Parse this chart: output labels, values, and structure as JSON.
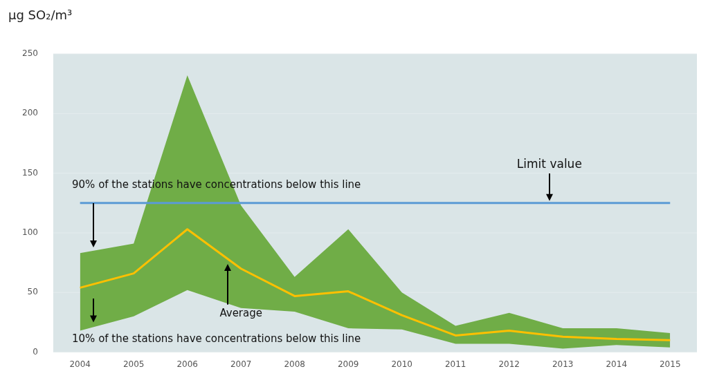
{
  "chart_data": {
    "type": "line",
    "ylabel": "µg SO₂/m³",
    "categories": [
      "2004",
      "2005",
      "2006",
      "2007",
      "2008",
      "2009",
      "2010",
      "2011",
      "2012",
      "2013",
      "2014",
      "2015"
    ],
    "series": [
      {
        "color": "#ffc000",
        "values": [
          54,
          66,
          103,
          70,
          47,
          51,
          31,
          14,
          18,
          13,
          11,
          10
        ],
        "lower": [
          18,
          30,
          52,
          37,
          34,
          20,
          19,
          7,
          7,
          3,
          6,
          4
        ],
        "upper": [
          83,
          91,
          232,
          123,
          63,
          103,
          50,
          22,
          33,
          20,
          20,
          16
        ]
      }
    ],
    "ylim": [
      0,
      250
    ],
    "yticks": [
      0,
      50,
      100,
      150,
      200,
      250
    ],
    "grid": "y",
    "ref_lines": [
      {
        "axis": "y",
        "value": 125,
        "label": "Limit value",
        "color": "#5b9bd5"
      }
    ],
    "annotations": [
      "90% of the stations have concentrations below this line",
      "Average",
      "10% of the stations have concentrations below this line"
    ]
  }
}
